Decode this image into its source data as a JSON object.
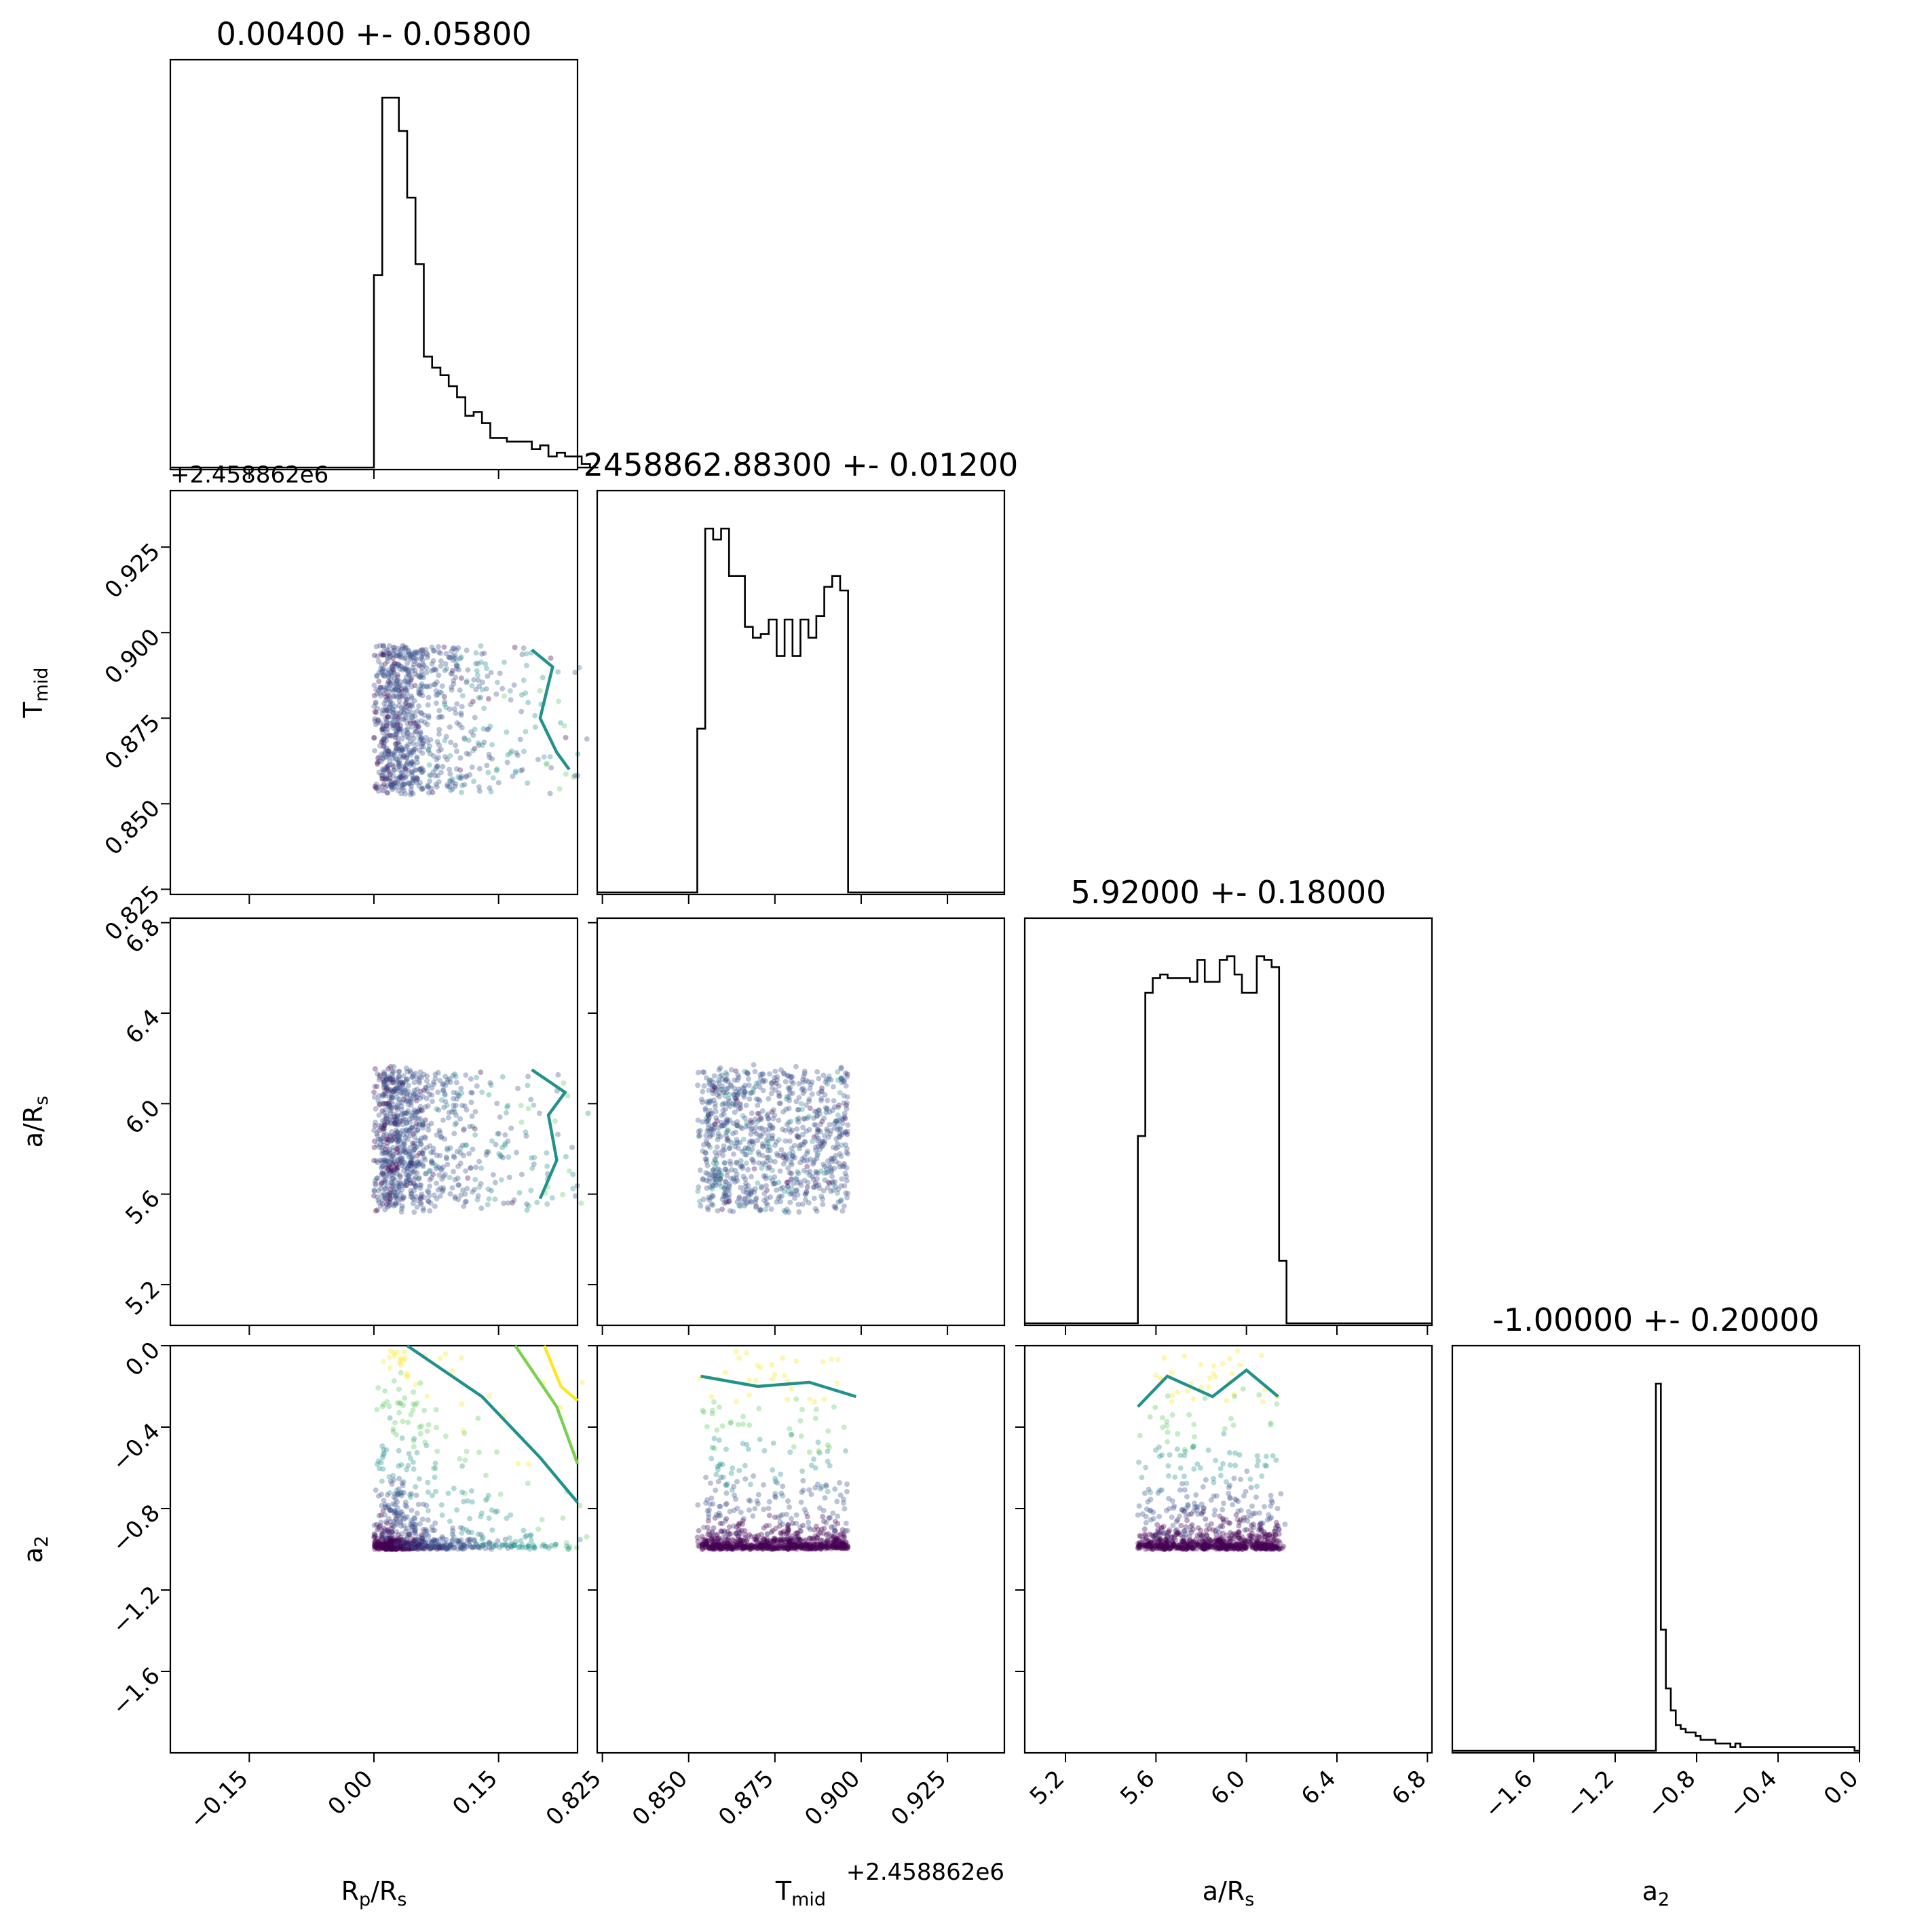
{
  "chart_data": {
    "type": "corner",
    "parameters": [
      {
        "name": "R_p/R_s",
        "label_main": "R",
        "label_sub": "p",
        "label_tail": "/R",
        "label_sub2": "s",
        "title": "0.00400 +- 0.05800",
        "range": [
          -0.245,
          0.245
        ],
        "ticks": [
          -0.15,
          0.0,
          0.15
        ],
        "tick_labels": [
          "−0.15",
          "0.00",
          "0.15"
        ]
      },
      {
        "name": "T_mid",
        "label_main": "T",
        "label_sub": "mid",
        "label_tail": "",
        "label_sub2": "",
        "title": "2458862.88300 +- 0.01200",
        "offset": "+2.458862e6",
        "range": [
          0.8235,
          0.9415
        ],
        "ticks": [
          0.825,
          0.85,
          0.875,
          0.9,
          0.925
        ],
        "tick_labels": [
          "0.825",
          "0.850",
          "0.875",
          "0.900",
          "0.925"
        ]
      },
      {
        "name": "a/R_s",
        "label_main": "a/R",
        "label_sub": "s",
        "label_tail": "",
        "label_sub2": "",
        "title": "5.92000 +- 0.18000",
        "range": [
          5.02,
          6.82
        ],
        "ticks": [
          5.2,
          5.6,
          6.0,
          6.4,
          6.8
        ],
        "tick_labels": [
          "5.2",
          "5.6",
          "6.0",
          "6.4",
          "6.8"
        ]
      },
      {
        "name": "a_2",
        "label_main": "a",
        "label_sub": "2",
        "label_tail": "",
        "label_sub2": "",
        "title": "-1.00000 +- 0.20000",
        "range": [
          -2.0,
          0.0
        ],
        "ticks": [
          -1.6,
          -1.2,
          -0.8,
          -0.4,
          0.0
        ],
        "tick_labels": [
          "−1.6",
          "−1.2",
          "−0.8",
          "−0.4",
          "0.0"
        ]
      }
    ],
    "histograms": [
      {
        "param": "R_p/R_s",
        "edges_range": [
          0.0,
          0.27
        ],
        "counts": [
          52,
          100,
          100,
          91,
          73,
          55,
          30,
          27,
          25,
          22,
          19,
          14,
          15,
          12,
          8,
          8,
          7,
          7,
          7,
          5,
          6,
          3,
          4,
          3,
          3,
          1,
          0
        ]
      },
      {
        "param": "T_mid",
        "edges_range": [
          0.8525,
          0.8985
        ],
        "counts": [
          45,
          100,
          97,
          100,
          87,
          87,
          73,
          70,
          71,
          75,
          65,
          75,
          65,
          75,
          70,
          76,
          84,
          87,
          83,
          0
        ]
      },
      {
        "param": "a/R_s",
        "edges_range": [
          5.52,
          6.21
        ],
        "counts": [
          51,
          90,
          94,
          95,
          94,
          94,
          94,
          93,
          99,
          93,
          93,
          99,
          100,
          95,
          90,
          90,
          100,
          99,
          97,
          17,
          0
        ]
      },
      {
        "param": "a_2",
        "edges_range": [
          -1.0,
          0.0
        ],
        "counts": [
          100,
          33,
          17,
          11,
          7,
          6,
          5,
          5,
          4,
          3,
          3,
          3,
          2,
          2,
          2,
          1,
          2,
          1,
          1,
          1,
          1,
          1,
          1,
          1,
          1,
          1,
          1,
          1,
          1,
          1,
          1,
          1,
          1,
          1,
          1,
          1,
          1,
          1,
          1,
          1,
          0
        ]
      }
    ],
    "scatter_colormap": "viridis",
    "contour_colors": [
      "#21918c",
      "#7ad151",
      "#fde725"
    ],
    "offset_labels": [
      "+2.458862e6",
      "+2.458862e6"
    ],
    "grid": false,
    "legend": "none"
  }
}
